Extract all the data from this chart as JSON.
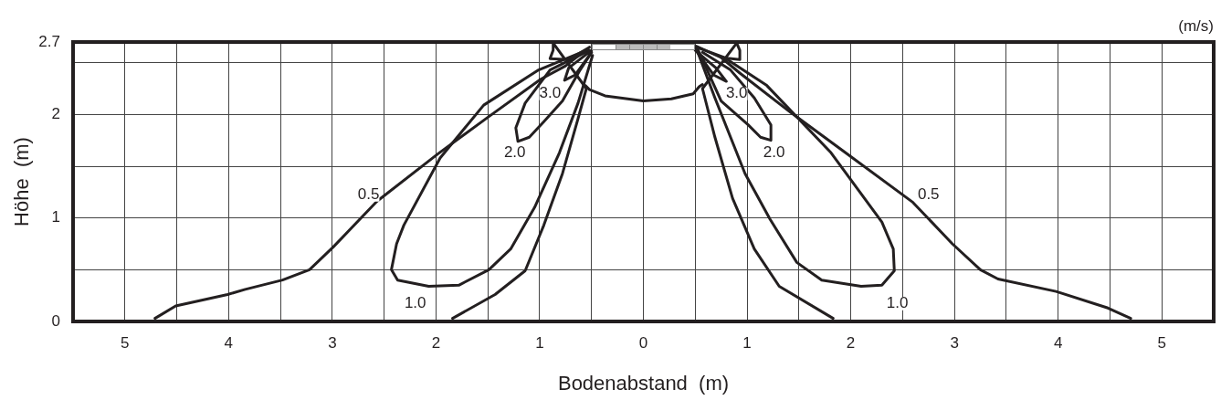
{
  "chart_data": {
    "type": "line",
    "xlabel": "Bodenabstand  (m)",
    "ylabel": "Höhe  (m)",
    "xlim": [
      -5.5,
      5.5
    ],
    "xticks": [
      {
        "value": -5,
        "label": "5"
      },
      {
        "value": -4.5,
        "label": null
      },
      {
        "value": -4,
        "label": "4"
      },
      {
        "value": -3.5,
        "label": null
      },
      {
        "value": -3,
        "label": "3"
      },
      {
        "value": -2.5,
        "label": null
      },
      {
        "value": -2,
        "label": "2"
      },
      {
        "value": -1.5,
        "label": null
      },
      {
        "value": -1,
        "label": "1"
      },
      {
        "value": -0.5,
        "label": null
      },
      0,
      {
        "value": 0.5,
        "label": null
      },
      1,
      {
        "value": 1.5,
        "label": null
      },
      2,
      {
        "value": 2.5,
        "label": null
      },
      3,
      {
        "value": 3.5,
        "label": null
      },
      4,
      {
        "value": 4.5,
        "label": null
      },
      5
    ],
    "ylim": [
      0,
      2.7
    ],
    "yticks": [
      0,
      {
        "value": 0.5,
        "label": null
      },
      1,
      {
        "value": 1.5,
        "label": null
      },
      2,
      {
        "value": 2.5,
        "label": null
      },
      2.7
    ],
    "grid": true,
    "legend": false,
    "marker": "none",
    "line_style": "solid",
    "series": [
      {
        "color": "#231f20",
        "x": [
          -4.71,
          -4.51,
          -4.01,
          -3.84,
          -3.48,
          -3.22,
          -2.99,
          -2.57,
          -1.98,
          -1.49,
          -0.99,
          -0.75,
          -0.52,
          -0.72,
          -0.9,
          -0.87,
          -0.87,
          -0.55,
          -0.63,
          -0.78,
          -0.96,
          -1.14,
          -1.43,
          -1.84
        ],
        "values": [
          0.03,
          0.15,
          0.26,
          0.31,
          0.4,
          0.5,
          0.72,
          1.16,
          1.62,
          1.98,
          2.34,
          2.47,
          2.65,
          2.53,
          2.54,
          2.62,
          2.69,
          2.25,
          1.96,
          1.43,
          0.93,
          0.49,
          0.26,
          0.03
        ]
      },
      {
        "color": "#231f20",
        "x": [
          4.7,
          4.48,
          3.98,
          3.42,
          3.25,
          2.98,
          2.6,
          1.95,
          1.42,
          0.93,
          0.75,
          0.51,
          0.75,
          0.93,
          0.93,
          0.9,
          0.57,
          0.69,
          0.86,
          1.07,
          1.31,
          1.83
        ],
        "values": [
          0.03,
          0.13,
          0.29,
          0.41,
          0.5,
          0.75,
          1.15,
          1.63,
          2.02,
          2.4,
          2.55,
          2.66,
          2.55,
          2.53,
          2.62,
          2.69,
          2.25,
          1.78,
          1.19,
          0.7,
          0.34,
          0.03
        ]
      },
      {
        "color": "#231f20",
        "x": [
          -0.55,
          -1.01,
          -1.54,
          -1.96,
          -2.31,
          -2.38,
          -2.43,
          -2.37,
          -2.07,
          -1.78,
          -1.49,
          -1.28,
          -1.05,
          -0.81,
          -0.63,
          -0.49
        ],
        "values": [
          2.62,
          2.43,
          2.09,
          1.58,
          0.93,
          0.75,
          0.5,
          0.4,
          0.34,
          0.35,
          0.5,
          0.7,
          1.1,
          1.63,
          2.11,
          2.57
        ]
      },
      {
        "color": "#231f20",
        "x": [
          0.51,
          0.69,
          0.98,
          1.22,
          1.48,
          1.72,
          2.1,
          2.3,
          2.42,
          2.41,
          2.3,
          1.81,
          1.19,
          0.78,
          0.51
        ],
        "values": [
          2.64,
          2.16,
          1.43,
          0.99,
          0.57,
          0.4,
          0.34,
          0.35,
          0.49,
          0.7,
          0.96,
          1.63,
          2.28,
          2.55,
          2.65
        ]
      },
      {
        "color": "#231f20",
        "x": [
          -0.52,
          -0.9,
          -1.14,
          -1.23,
          -1.21,
          -1.1,
          -0.96,
          -0.78,
          -0.61,
          -0.5
        ],
        "values": [
          2.62,
          2.43,
          2.11,
          1.87,
          1.74,
          1.78,
          1.93,
          2.13,
          2.43,
          2.6
        ]
      },
      {
        "color": "#231f20",
        "x": [
          0.52,
          0.75,
          1.01,
          1.13,
          1.23,
          1.23,
          1.07,
          0.84,
          0.57
        ],
        "values": [
          2.64,
          2.13,
          1.9,
          1.78,
          1.75,
          1.9,
          2.16,
          2.43,
          2.6
        ]
      },
      {
        "color": "#231f20",
        "x": [
          -0.5,
          -0.72,
          -0.76,
          -0.66,
          -0.5
        ],
        "values": [
          2.62,
          2.45,
          2.33,
          2.38,
          2.6
        ]
      },
      {
        "color": "#231f20",
        "x": [
          0.5,
          0.7,
          0.8,
          0.68,
          0.52
        ],
        "values": [
          2.62,
          2.45,
          2.32,
          2.38,
          2.6
        ]
      },
      {
        "color": "#231f20",
        "x": [
          -0.56,
          -0.52,
          -0.37,
          0,
          0.27,
          0.48,
          0.54,
          0.57
        ],
        "values": [
          2.28,
          2.24,
          2.18,
          2.13,
          2.15,
          2.2,
          2.27,
          2.29
        ]
      }
    ],
    "annotations": [
      "(m/s)",
      "0.5",
      "0.5",
      "1.0",
      "1.0",
      "2.0",
      "2.0",
      "3.0",
      "3.0"
    ]
  }
}
